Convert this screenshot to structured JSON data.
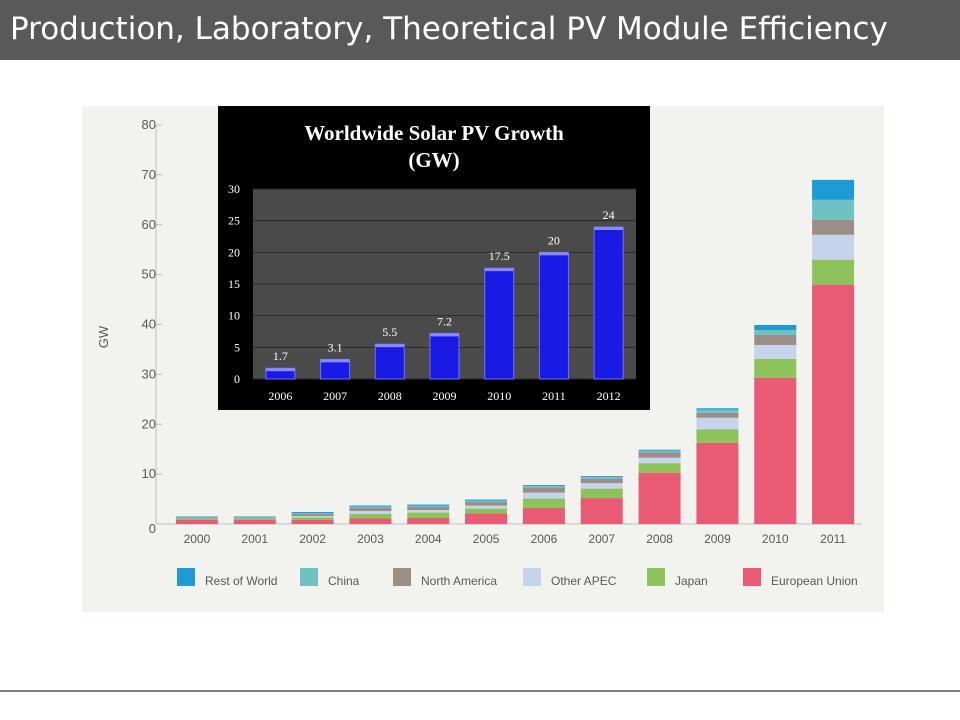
{
  "slide": {
    "title": "Production, Laboratory, Theoretical PV Module Efficiency"
  },
  "chart_data": [
    {
      "type": "bar",
      "stacked": true,
      "ylabel": "GW",
      "xlabel": "",
      "ylim": [
        0,
        80
      ],
      "yticks": [
        0,
        10,
        20,
        30,
        40,
        50,
        60,
        70,
        80
      ],
      "categories": [
        "2000",
        "2001",
        "2002",
        "2003",
        "2004",
        "2005",
        "2006",
        "2007",
        "2008",
        "2009",
        "2010",
        "2011"
      ],
      "legend_position": "bottom",
      "series": [
        {
          "name": "European Union",
          "color": "#e95a73",
          "values": [
            0.8,
            0.8,
            0.8,
            1.1,
            1.2,
            2.1,
            3.2,
            5.2,
            10.3,
            16.3,
            29.3,
            48.0
          ]
        },
        {
          "name": "Japan",
          "color": "#8dc35a",
          "values": [
            0.2,
            0.2,
            0.5,
            0.9,
            1.1,
            1.0,
            1.9,
            1.9,
            1.9,
            2.7,
            3.8,
            5.0
          ]
        },
        {
          "name": "Other APEC",
          "color": "#c5d3ec",
          "values": [
            0.1,
            0.1,
            0.3,
            0.6,
            0.5,
            0.6,
            1.2,
            1.1,
            1.1,
            2.3,
            2.8,
            5.0
          ]
        },
        {
          "name": "North America",
          "color": "#9c8d86",
          "values": [
            0.2,
            0.2,
            0.4,
            0.6,
            0.6,
            0.7,
            1.0,
            0.9,
            1.1,
            1.0,
            2.0,
            3.0
          ]
        },
        {
          "name": "China",
          "color": "#6fc2c3",
          "values": [
            0.1,
            0.1,
            0.2,
            0.3,
            0.3,
            0.3,
            0.3,
            0.3,
            0.3,
            0.6,
            1.0,
            4.0
          ]
        },
        {
          "name": "Rest of World",
          "color": "#1e9ad6",
          "values": [
            0.1,
            0.1,
            0.2,
            0.2,
            0.2,
            0.2,
            0.2,
            0.2,
            0.2,
            0.3,
            1.0,
            4.0
          ]
        }
      ]
    },
    {
      "type": "bar",
      "title_lines": [
        "Worldwide  Solar PV Growth",
        "(GW)"
      ],
      "categories": [
        "2006",
        "2007",
        "2008",
        "2009",
        "2010",
        "2011",
        "2012"
      ],
      "values": [
        1.7,
        3.1,
        5.5,
        7.2,
        17.5,
        20,
        24
      ],
      "data_labels": [
        "1.7",
        "3.1",
        "5.5",
        "7.2",
        "17.5",
        "20",
        "24"
      ],
      "ylim": [
        0,
        30
      ],
      "yticks": [
        0,
        5,
        10,
        15,
        20,
        25,
        30
      ],
      "bar_color": "#1a1ae6",
      "background": "#000000",
      "plot_background": "#4a4a4a"
    }
  ]
}
